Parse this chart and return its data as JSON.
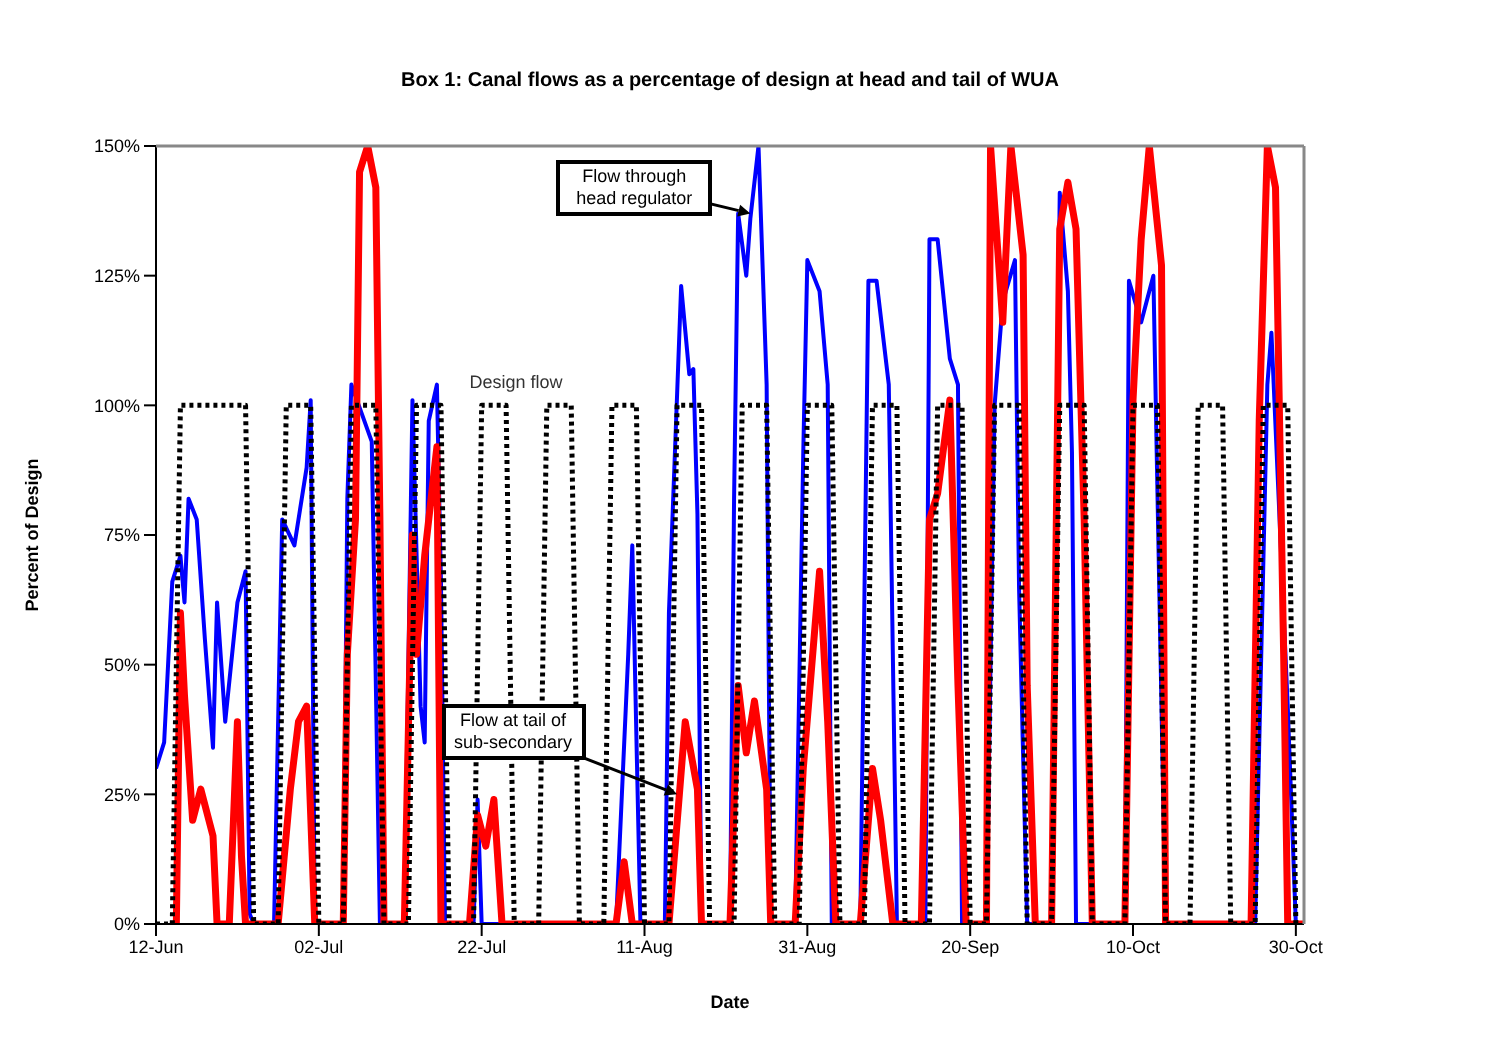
{
  "chart_data": {
    "type": "line",
    "title": "Box 1: Canal flows as a percentage of design at head and tail of WUA",
    "xlabel": "Date",
    "ylabel": "Percent of Design",
    "xlim": [
      "--06-12",
      "--10-31"
    ],
    "xticks": [
      {
        "value": "--06-12",
        "label": "12-Jun"
      },
      {
        "value": "--07-02",
        "label": "02-Jul"
      },
      {
        "value": "--07-22",
        "label": "22-Jul"
      },
      {
        "value": "--08-11",
        "label": "11-Aug"
      },
      {
        "value": "--08-31",
        "label": "31-Aug"
      },
      {
        "value": "--09-20",
        "label": "20-Sep"
      },
      {
        "value": "--10-10",
        "label": "10-Oct"
      },
      {
        "value": "--10-30",
        "label": "30-Oct"
      }
    ],
    "ylim": [
      0,
      150
    ],
    "yticks": [
      {
        "value": 0,
        "label": "0%"
      },
      {
        "value": 25,
        "label": "25%"
      },
      {
        "value": 50,
        "label": "50%"
      },
      {
        "value": 75,
        "label": "75%"
      },
      {
        "value": 100,
        "label": "100%"
      },
      {
        "value": 125,
        "label": "125%"
      },
      {
        "value": 150,
        "label": "150%"
      }
    ],
    "series": [
      {
        "color": "#0000ff",
        "line_style": "solid",
        "x": [
          "--06-12",
          "--06-13",
          "--06-14",
          "--06-15",
          "--06-15T12:00",
          "--06-16",
          "--06-17",
          "--06-18",
          "--06-19",
          "--06-19T12:00",
          "--06-20T12:00",
          "--06-22",
          "--06-23",
          "--06-23T12:00",
          "--06-24",
          "--06-26T12:00",
          "--06-27T12:00",
          "--06-29",
          "--06-30T12:00",
          "--07-01",
          "--07-01T12:00",
          "--07-05",
          "--07-05T12:00",
          "--07-06",
          "--07-08T12:00",
          "--07-09T12:00",
          "--07-12T12:00",
          "--07-13T12:00",
          "--07-14T12:00",
          "--07-15",
          "--07-15T12:00",
          "--07-16T12:00",
          "--07-17",
          "--07-17T12:00",
          "--07-21",
          "--07-21T12:00",
          "--07-22",
          "--08-07T12:00",
          "--08-09",
          "--08-09T12:00",
          "--08-10T12:00",
          "--08-13T12:00",
          "--08-14",
          "--08-15T12:00",
          "--08-16T12:00",
          "--08-17",
          "--08-17T12:00",
          "--08-18",
          "--08-21T12:00",
          "--08-22",
          "--08-22T12:00",
          "--08-23T12:00",
          "--08-24",
          "--08-25",
          "--08-26",
          "--08-26T12:00",
          "--08-29T12:00",
          "--08-30T12:00",
          "--08-31",
          "--09-01T12:00",
          "--09-02T12:00",
          "--09-03",
          "--09-06T12:00",
          "--09-07T12:00",
          "--09-08T12:00",
          "--09-10",
          "--09-11",
          "--09-14T12:00",
          "--09-15",
          "--09-16",
          "--09-17T12:00",
          "--09-18T12:00",
          "--09-19",
          "--09-22",
          "--09-23",
          "--09-24",
          "--09-25T12:00",
          "--09-26",
          "--09-27",
          "--09-30",
          "--10-01",
          "--10-02",
          "--10-02T12:00",
          "--10-03",
          "--10-09",
          "--10-09T12:00",
          "--10-11",
          "--10-12T12:00",
          "--10-14",
          "--10-25",
          "--10-26T12:00",
          "--10-27",
          "--10-29",
          "--10-30"
        ],
        "values": [
          30,
          35,
          66,
          71,
          62,
          82,
          78,
          55,
          34,
          62,
          39,
          62,
          68,
          2,
          0,
          0,
          78,
          73,
          88,
          101,
          0,
          0,
          82,
          104,
          93,
          0,
          0,
          101,
          42,
          35,
          97,
          104,
          66,
          0,
          0,
          24,
          0,
          0,
          52,
          73,
          0,
          0,
          60,
          123,
          106,
          107,
          79,
          0,
          0,
          82,
          137,
          125,
          136,
          150,
          104,
          0,
          0,
          91,
          128,
          122,
          104,
          0,
          0,
          124,
          124,
          104,
          0,
          0,
          132,
          132,
          109,
          104,
          0,
          0,
          100,
          120,
          128,
          65,
          0,
          0,
          141,
          122,
          91,
          0,
          0,
          124,
          116,
          125,
          0,
          0,
          104,
          114,
          42,
          0
        ]
      },
      {
        "color": "#ff0000",
        "line_style": "solid",
        "x": [
          "--06-14T12:00",
          "--06-15",
          "--06-15T12:00",
          "--06-16T12:00",
          "--06-17T12:00",
          "--06-19",
          "--06-19T12:00",
          "--06-21",
          "--06-22",
          "--06-22T12:00",
          "--06-23",
          "--06-27",
          "--06-28T12:00",
          "--06-29T12:00",
          "--06-30T12:00",
          "--07-01T12:00",
          "--07-05",
          "--07-05T12:00",
          "--07-06T12:00",
          "--07-07",
          "--07-08",
          "--07-09",
          "--07-09T12:00",
          "--07-10",
          "--07-12T12:00",
          "--07-13T12:00",
          "--07-14",
          "--07-15",
          "--07-15T12:00",
          "--07-16T12:00",
          "--07-17",
          "--07-20T12:00",
          "--07-21T12:00",
          "--07-22T12:00",
          "--07-23T12:00",
          "--07-24T12:00",
          "--08-07T12:00",
          "--08-08T12:00",
          "--08-09T12:00",
          "--08-14",
          "--08-16",
          "--08-17T12:00",
          "--08-18",
          "--08-21T12:00",
          "--08-22T12:00",
          "--08-23T12:00",
          "--08-24T12:00",
          "--08-26",
          "--08-26T12:00",
          "--08-29T12:00",
          "--08-30T12:00",
          "--09-01T12:00",
          "--09-02T12:00",
          "--09-03T12:00",
          "--09-06T12:00",
          "--09-08",
          "--09-09",
          "--09-10T12:00",
          "--09-14",
          "--09-15",
          "--09-16",
          "--09-17T12:00",
          "--09-18T12:00",
          "--09-19T12:00",
          "--09-22",
          "--09-22T12:00",
          "--09-24",
          "--09-25",
          "--09-26T12:00",
          "--09-27",
          "--09-28",
          "--09-30",
          "--10-01",
          "--10-02",
          "--10-03",
          "--10-04",
          "--10-05",
          "--10-09",
          "--10-10",
          "--10-11",
          "--10-12",
          "--10-13T12:00",
          "--10-14",
          "--10-24T12:00",
          "--10-25T12:00",
          "--10-26T12:00",
          "--10-27T12:00",
          "--10-28T12:00",
          "--10-29",
          "--10-31"
        ],
        "values": [
          0,
          60,
          44,
          20,
          26,
          17,
          0,
          0,
          39,
          13,
          0,
          0,
          26,
          39,
          42,
          0,
          0,
          52,
          78,
          145,
          150,
          142,
          78,
          0,
          0,
          75,
          52,
          71,
          78,
          92,
          0,
          0,
          21,
          15,
          24,
          0,
          0,
          12,
          0,
          0,
          39,
          26,
          0,
          0,
          46,
          33,
          43,
          26,
          0,
          0,
          30,
          68,
          39,
          0,
          0,
          30,
          20,
          0,
          0,
          78,
          83,
          101,
          46,
          0,
          0,
          150,
          116,
          150,
          129,
          46,
          0,
          0,
          134,
          143,
          134,
          78,
          0,
          0,
          101,
          132,
          150,
          127,
          0,
          0,
          97,
          150,
          142,
          52,
          0,
          0
        ]
      },
      {
        "color": "#000000",
        "line_style": "dotted",
        "x": [
          "--06-12",
          "--06-14",
          "--06-15",
          "--06-23",
          "--06-24",
          "--06-27",
          "--06-28",
          "--07-01",
          "--07-02",
          "--07-05",
          "--07-06",
          "--07-09",
          "--07-10",
          "--07-13",
          "--07-14",
          "--07-17",
          "--07-18",
          "--07-21",
          "--07-22",
          "--07-25",
          "--07-26",
          "--07-29",
          "--07-30",
          "--08-02",
          "--08-03",
          "--08-06",
          "--08-07",
          "--08-10",
          "--08-11",
          "--08-14",
          "--08-15",
          "--08-18",
          "--08-19",
          "--08-22",
          "--08-23",
          "--08-26",
          "--08-27",
          "--08-30",
          "--08-31",
          "--09-03",
          "--09-04",
          "--09-07",
          "--09-08",
          "--09-11",
          "--09-12",
          "--09-15",
          "--09-16",
          "--09-19",
          "--09-20",
          "--09-22",
          "--09-23",
          "--09-26",
          "--09-27",
          "--09-30",
          "--10-01",
          "--10-04",
          "--10-05",
          "--10-09",
          "--10-10",
          "--10-13",
          "--10-14",
          "--10-17",
          "--10-18",
          "--10-21",
          "--10-22",
          "--10-25",
          "--10-26",
          "--10-29",
          "--10-30"
        ],
        "values": [
          0,
          0,
          100,
          100,
          0,
          0,
          100,
          100,
          0,
          0,
          100,
          100,
          0,
          0,
          100,
          100,
          0,
          0,
          100,
          100,
          0,
          0,
          100,
          100,
          0,
          0,
          100,
          100,
          0,
          0,
          100,
          100,
          0,
          0,
          100,
          100,
          0,
          0,
          100,
          100,
          0,
          0,
          100,
          100,
          0,
          0,
          100,
          100,
          0,
          0,
          100,
          100,
          0,
          0,
          100,
          100,
          0,
          0,
          100,
          100,
          0,
          0,
          100,
          100,
          0,
          0,
          100,
          100,
          0
        ]
      }
    ],
    "annotations": [
      {
        "text": "Flow through head regulator",
        "x": "--08-24",
        "y": 137
      },
      {
        "text": "Flow at tail of sub-secondary",
        "x": "--08-15",
        "y": 25
      },
      "Design flow"
    ]
  }
}
